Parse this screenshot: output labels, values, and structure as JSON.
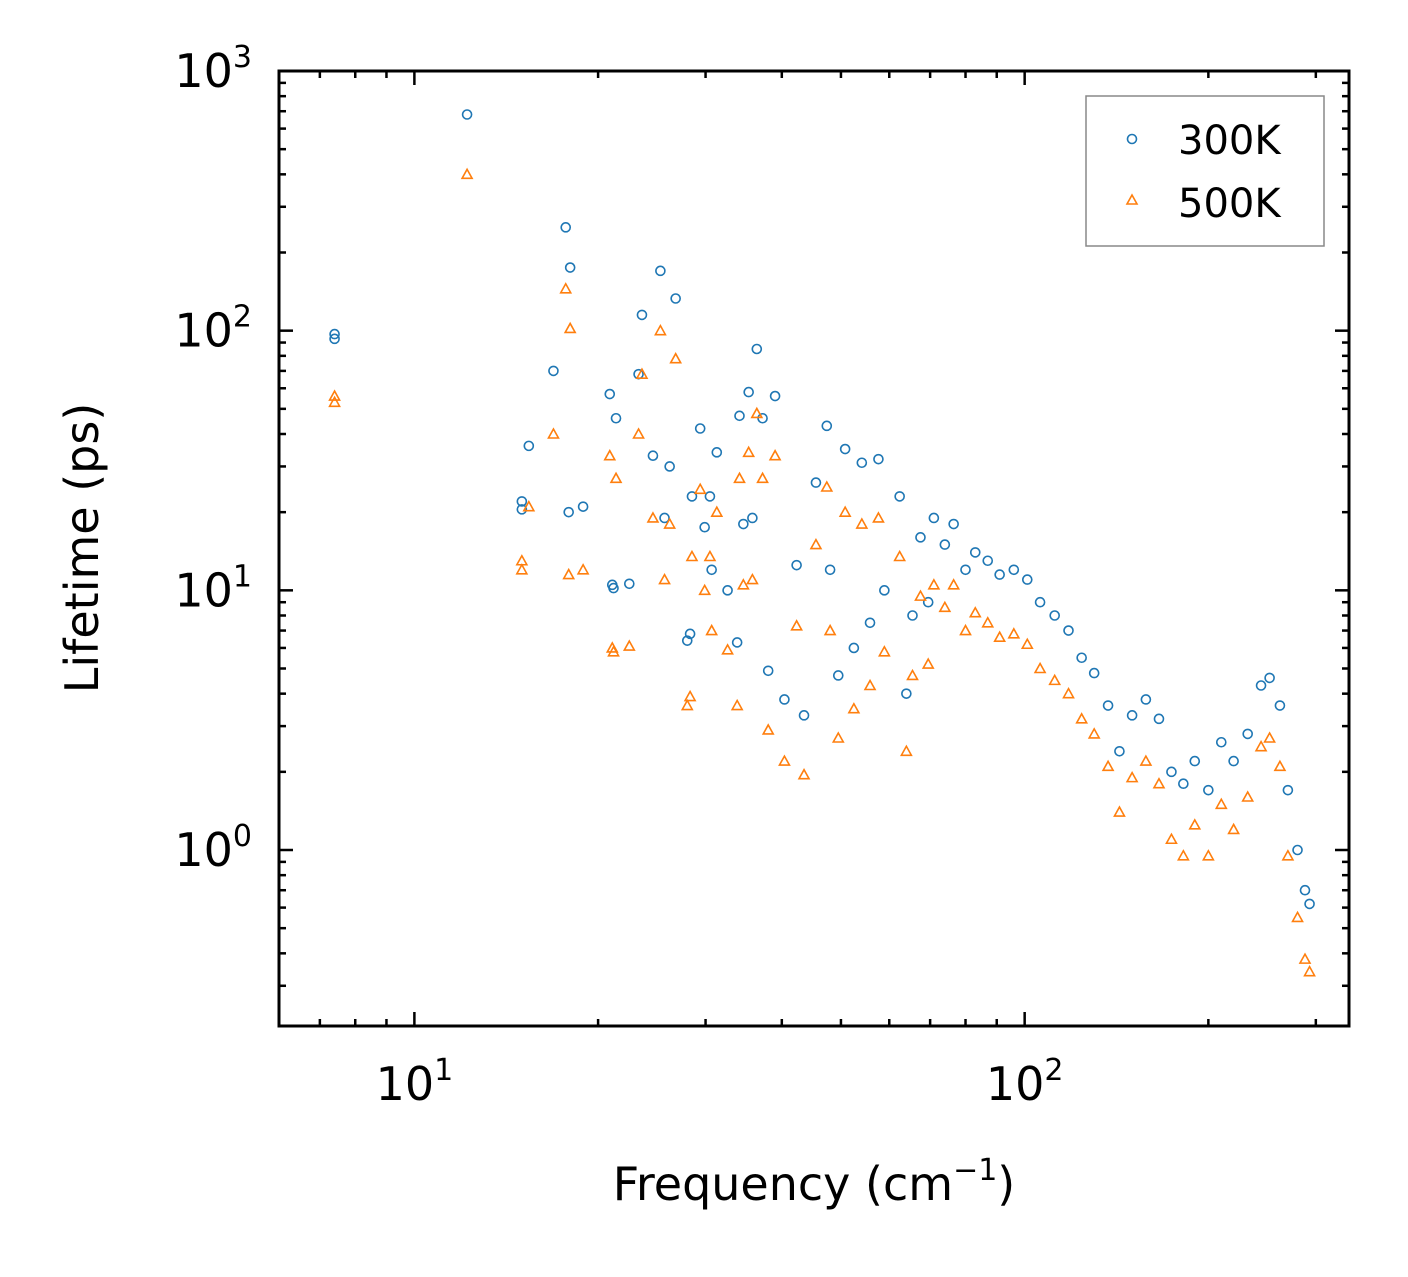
{
  "chart_data": {
    "type": "scatter",
    "title": "",
    "xlabel": {
      "base": "Frequency (cm",
      "sup": "−1",
      "tail": ")"
    },
    "ylabel": "Lifetime (ps)",
    "xscale": "log",
    "yscale": "log",
    "xlim": [
      6.0,
      340
    ],
    "ylim": [
      0.21,
      1000
    ],
    "x_major_ticks": [
      {
        "value": 10,
        "base": "10",
        "exp": "1"
      },
      {
        "value": 100,
        "base": "10",
        "exp": "2"
      }
    ],
    "y_major_ticks": [
      {
        "value": 1,
        "base": "10",
        "exp": "0"
      },
      {
        "value": 10,
        "base": "10",
        "exp": "1"
      },
      {
        "value": 100,
        "base": "10",
        "exp": "2"
      },
      {
        "value": 1000,
        "base": "10",
        "exp": "3"
      }
    ],
    "legend_position": "top-right",
    "series": [
      {
        "name": "300K",
        "marker": "circle",
        "color": "#1f77b4",
        "points": [
          [
            7.4,
            97
          ],
          [
            7.4,
            93
          ],
          [
            12.2,
            680
          ],
          [
            15.0,
            22
          ],
          [
            15.0,
            20.5
          ],
          [
            15.4,
            36
          ],
          [
            16.9,
            70
          ],
          [
            17.7,
            250
          ],
          [
            18.0,
            175
          ],
          [
            17.9,
            20
          ],
          [
            18.9,
            21
          ],
          [
            20.9,
            57
          ],
          [
            21.1,
            10.5
          ],
          [
            21.2,
            10.2
          ],
          [
            21.4,
            46
          ],
          [
            22.5,
            10.6
          ],
          [
            23.3,
            68
          ],
          [
            23.6,
            115
          ],
          [
            24.6,
            33
          ],
          [
            25.3,
            170
          ],
          [
            25.7,
            19
          ],
          [
            26.2,
            30
          ],
          [
            26.8,
            133
          ],
          [
            28.0,
            6.4
          ],
          [
            28.3,
            6.8
          ],
          [
            28.5,
            23
          ],
          [
            29.4,
            42
          ],
          [
            29.9,
            17.5
          ],
          [
            30.5,
            23
          ],
          [
            30.7,
            12
          ],
          [
            31.3,
            34
          ],
          [
            32.6,
            10
          ],
          [
            34.1,
            47
          ],
          [
            33.8,
            6.3
          ],
          [
            34.6,
            18
          ],
          [
            35.3,
            58
          ],
          [
            35.8,
            19
          ],
          [
            36.4,
            85
          ],
          [
            37.2,
            46
          ],
          [
            38.0,
            4.9
          ],
          [
            39.0,
            56
          ],
          [
            40.4,
            3.8
          ],
          [
            42.3,
            12.5
          ],
          [
            43.5,
            3.3
          ],
          [
            45.5,
            26
          ],
          [
            47.4,
            43
          ],
          [
            48.0,
            12
          ],
          [
            49.5,
            4.7
          ],
          [
            50.8,
            35
          ],
          [
            52.5,
            6
          ],
          [
            54.1,
            31
          ],
          [
            55.8,
            7.5
          ],
          [
            57.6,
            32
          ],
          [
            58.9,
            10
          ],
          [
            62.4,
            23
          ],
          [
            64.0,
            4
          ],
          [
            65.5,
            8
          ],
          [
            67.5,
            16
          ],
          [
            69.5,
            9
          ],
          [
            71.0,
            19
          ],
          [
            74.0,
            15
          ],
          [
            76.5,
            18
          ],
          [
            80.0,
            12
          ],
          [
            83.0,
            14
          ],
          [
            87.0,
            13
          ],
          [
            91.0,
            11.5
          ],
          [
            96.0,
            12
          ],
          [
            101.0,
            11
          ],
          [
            106.0,
            9
          ],
          [
            112.0,
            8
          ],
          [
            118.0,
            7
          ],
          [
            124.0,
            5.5
          ],
          [
            130.0,
            4.8
          ],
          [
            137.0,
            3.6
          ],
          [
            143.0,
            2.4
          ],
          [
            150.0,
            3.3
          ],
          [
            158.0,
            3.8
          ],
          [
            166.0,
            3.2
          ],
          [
            174.0,
            2.0
          ],
          [
            182.0,
            1.8
          ],
          [
            190.0,
            2.2
          ],
          [
            200.0,
            1.7
          ],
          [
            210.0,
            2.6
          ],
          [
            220.0,
            2.2
          ],
          [
            232.0,
            2.8
          ],
          [
            244.0,
            4.3
          ],
          [
            252.0,
            4.6
          ],
          [
            262.0,
            3.6
          ],
          [
            270.0,
            1.7
          ],
          [
            280.0,
            1.0
          ],
          [
            288.0,
            0.7
          ],
          [
            293.0,
            0.62
          ]
        ]
      },
      {
        "name": "500K",
        "marker": "triangle",
        "color": "#ff7f0e",
        "points": [
          [
            7.4,
            56
          ],
          [
            7.4,
            53
          ],
          [
            12.2,
            400
          ],
          [
            15.0,
            13
          ],
          [
            15.0,
            12
          ],
          [
            15.4,
            21
          ],
          [
            16.9,
            40
          ],
          [
            17.7,
            145
          ],
          [
            18.0,
            102
          ],
          [
            17.9,
            11.5
          ],
          [
            18.9,
            12
          ],
          [
            20.9,
            33
          ],
          [
            21.1,
            6
          ],
          [
            21.2,
            5.8
          ],
          [
            21.4,
            27
          ],
          [
            22.5,
            6.1
          ],
          [
            23.3,
            40
          ],
          [
            23.6,
            68
          ],
          [
            24.6,
            19
          ],
          [
            25.3,
            100
          ],
          [
            25.7,
            11
          ],
          [
            26.2,
            18
          ],
          [
            26.8,
            78
          ],
          [
            28.0,
            3.6
          ],
          [
            28.3,
            3.9
          ],
          [
            28.5,
            13.5
          ],
          [
            29.4,
            24.5
          ],
          [
            29.9,
            10
          ],
          [
            30.5,
            13.5
          ],
          [
            30.7,
            7
          ],
          [
            31.3,
            20
          ],
          [
            32.6,
            5.9
          ],
          [
            34.1,
            27
          ],
          [
            33.8,
            3.6
          ],
          [
            34.6,
            10.5
          ],
          [
            35.3,
            34
          ],
          [
            35.8,
            11
          ],
          [
            36.4,
            48
          ],
          [
            37.2,
            27
          ],
          [
            38.0,
            2.9
          ],
          [
            39.0,
            33
          ],
          [
            40.4,
            2.2
          ],
          [
            42.3,
            7.3
          ],
          [
            43.5,
            1.95
          ],
          [
            45.5,
            15
          ],
          [
            47.4,
            25
          ],
          [
            48.0,
            7
          ],
          [
            49.5,
            2.7
          ],
          [
            50.8,
            20
          ],
          [
            52.5,
            3.5
          ],
          [
            54.1,
            18
          ],
          [
            55.8,
            4.3
          ],
          [
            57.6,
            19
          ],
          [
            58.9,
            5.8
          ],
          [
            62.4,
            13.5
          ],
          [
            64.0,
            2.4
          ],
          [
            65.5,
            4.7
          ],
          [
            67.5,
            9.5
          ],
          [
            69.5,
            5.2
          ],
          [
            71.0,
            10.5
          ],
          [
            74.0,
            8.6
          ],
          [
            76.5,
            10.5
          ],
          [
            80.0,
            7
          ],
          [
            83.0,
            8.2
          ],
          [
            87.0,
            7.5
          ],
          [
            91.0,
            6.6
          ],
          [
            96.0,
            6.8
          ],
          [
            101.0,
            6.2
          ],
          [
            106.0,
            5
          ],
          [
            112.0,
            4.5
          ],
          [
            118.0,
            4
          ],
          [
            124.0,
            3.2
          ],
          [
            130.0,
            2.8
          ],
          [
            137.0,
            2.1
          ],
          [
            143.0,
            1.4
          ],
          [
            150.0,
            1.9
          ],
          [
            158.0,
            2.2
          ],
          [
            166.0,
            1.8
          ],
          [
            174.0,
            1.1
          ],
          [
            182.0,
            0.95
          ],
          [
            190.0,
            1.25
          ],
          [
            200.0,
            0.95
          ],
          [
            210.0,
            1.5
          ],
          [
            220.0,
            1.2
          ],
          [
            232.0,
            1.6
          ],
          [
            244.0,
            2.5
          ],
          [
            252.0,
            2.7
          ],
          [
            262.0,
            2.1
          ],
          [
            270.0,
            0.95
          ],
          [
            280.0,
            0.55
          ],
          [
            288.0,
            0.38
          ],
          [
            293.0,
            0.34
          ]
        ]
      }
    ]
  }
}
